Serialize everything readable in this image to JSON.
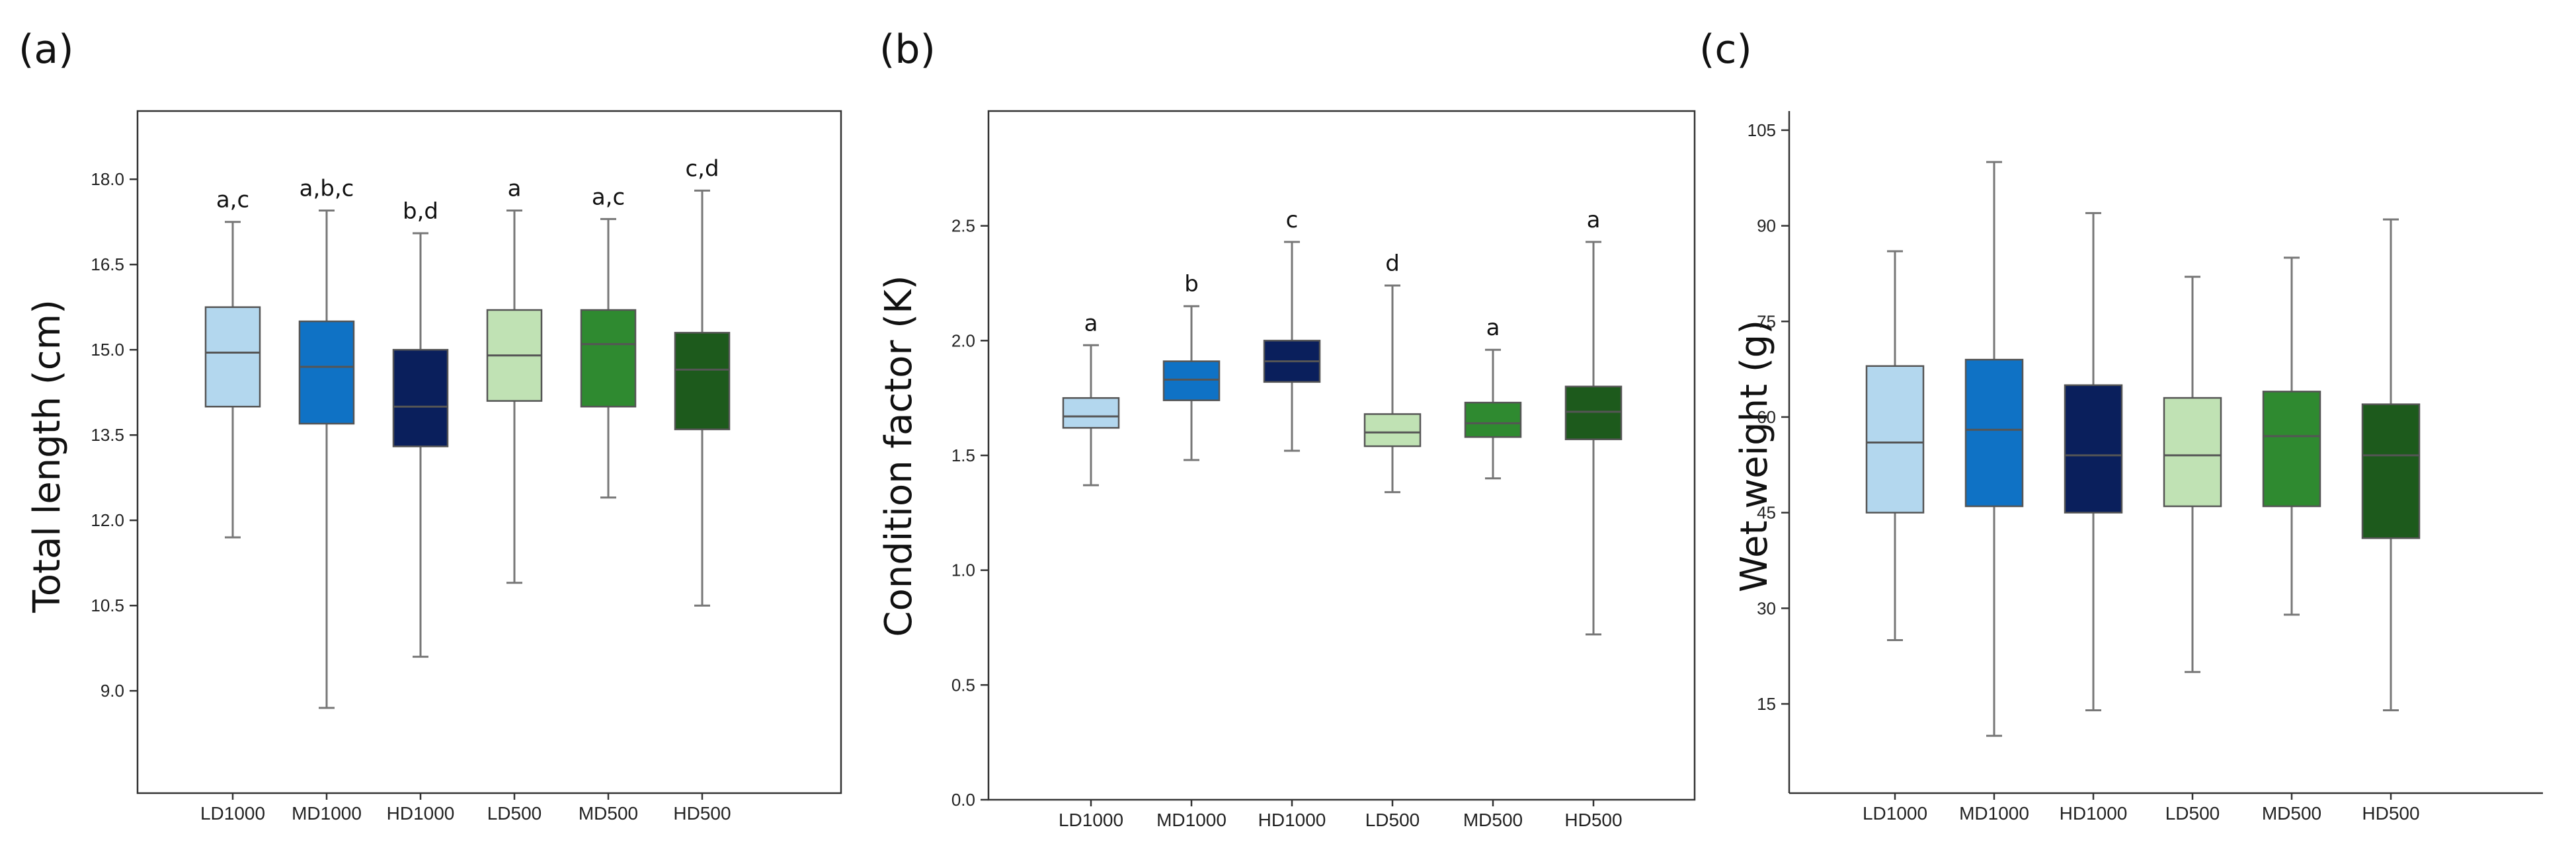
{
  "colors": {
    "LD1000": "#b3d7ee",
    "MD1000": "#0f72c5",
    "HD1000": "#0a1f5c",
    "LD500": "#c0e2b4",
    "MD500": "#2f8a30",
    "HD500": "#1d5a1c"
  },
  "chart_data": [
    {
      "type": "box",
      "panel_label": "(a)",
      "ylabel": "Total length (cm)",
      "ylim": [
        7.2,
        19.2
      ],
      "yticks": [
        9.0,
        10.5,
        12.0,
        13.5,
        15.0,
        16.5,
        18.0
      ],
      "ytick_labels": [
        "9.0",
        "10.5",
        "12.0",
        "13.5",
        "15.0",
        "16.5",
        "18.0"
      ],
      "categories": [
        "LD1000",
        "MD1000",
        "HD1000",
        "LD500",
        "MD500",
        "HD500"
      ],
      "boxes": [
        {
          "min": 11.7,
          "q1": 14.0,
          "median": 14.95,
          "q3": 15.75,
          "max": 17.25,
          "letter": "a,c"
        },
        {
          "min": 8.7,
          "q1": 13.7,
          "median": 14.7,
          "q3": 15.5,
          "max": 17.45,
          "letter": "a,b,c"
        },
        {
          "min": 9.6,
          "q1": 13.3,
          "median": 14.0,
          "q3": 15.0,
          "max": 17.05,
          "letter": "b,d"
        },
        {
          "min": 10.9,
          "q1": 14.1,
          "median": 14.9,
          "q3": 15.7,
          "max": 17.45,
          "letter": "a"
        },
        {
          "min": 12.4,
          "q1": 14.0,
          "median": 15.1,
          "q3": 15.7,
          "max": 17.3,
          "letter": "a,c"
        },
        {
          "min": 10.5,
          "q1": 13.6,
          "median": 14.65,
          "q3": 15.3,
          "max": 17.8,
          "letter": "c,d"
        }
      ]
    },
    {
      "type": "box",
      "panel_label": "(b)",
      "ylabel": "Condition factor (K)",
      "ylim": [
        0.0,
        3.0
      ],
      "yticks": [
        0.0,
        0.5,
        1.0,
        1.5,
        2.0,
        2.5
      ],
      "ytick_labels": [
        "0.0",
        "0.5",
        "1.0",
        "1.5",
        "2.0",
        "2.5"
      ],
      "categories": [
        "LD1000",
        "MD1000",
        "HD1000",
        "LD500",
        "MD500",
        "HD500"
      ],
      "boxes": [
        {
          "min": 1.37,
          "q1": 1.62,
          "median": 1.67,
          "q3": 1.75,
          "max": 1.98,
          "letter": "a"
        },
        {
          "min": 1.48,
          "q1": 1.74,
          "median": 1.83,
          "q3": 1.91,
          "max": 2.15,
          "letter": "b"
        },
        {
          "min": 1.52,
          "q1": 1.82,
          "median": 1.91,
          "q3": 2.0,
          "max": 2.43,
          "letter": "c"
        },
        {
          "min": 1.34,
          "q1": 1.54,
          "median": 1.6,
          "q3": 1.68,
          "max": 2.24,
          "letter": "d"
        },
        {
          "min": 1.4,
          "q1": 1.58,
          "median": 1.64,
          "q3": 1.73,
          "max": 1.96,
          "letter": "a"
        },
        {
          "min": 0.72,
          "q1": 1.57,
          "median": 1.69,
          "q3": 1.8,
          "max": 2.43,
          "letter": "a"
        }
      ]
    },
    {
      "type": "box",
      "panel_label": "(c)",
      "ylabel": "Wet weight (g)",
      "ylim": [
        1,
        108
      ],
      "yticks": [
        15,
        30,
        45,
        60,
        75,
        90,
        105
      ],
      "ytick_labels": [
        "15",
        "30",
        "45",
        "60",
        "75",
        "90",
        "105"
      ],
      "categories": [
        "LD1000",
        "MD1000",
        "HD1000",
        "LD500",
        "MD500",
        "HD500"
      ],
      "boxes": [
        {
          "min": 25,
          "q1": 45,
          "median": 56,
          "q3": 68,
          "max": 86,
          "letter": ""
        },
        {
          "min": 10,
          "q1": 46,
          "median": 58,
          "q3": 69,
          "max": 100,
          "letter": ""
        },
        {
          "min": 14,
          "q1": 45,
          "median": 54,
          "q3": 65,
          "max": 92,
          "letter": ""
        },
        {
          "min": 20,
          "q1": 46,
          "median": 54,
          "q3": 63,
          "max": 82,
          "letter": ""
        },
        {
          "min": 29,
          "q1": 46,
          "median": 57,
          "q3": 64,
          "max": 85,
          "letter": ""
        },
        {
          "min": 14,
          "q1": 41,
          "median": 54,
          "q3": 62,
          "max": 91,
          "letter": ""
        }
      ]
    }
  ]
}
